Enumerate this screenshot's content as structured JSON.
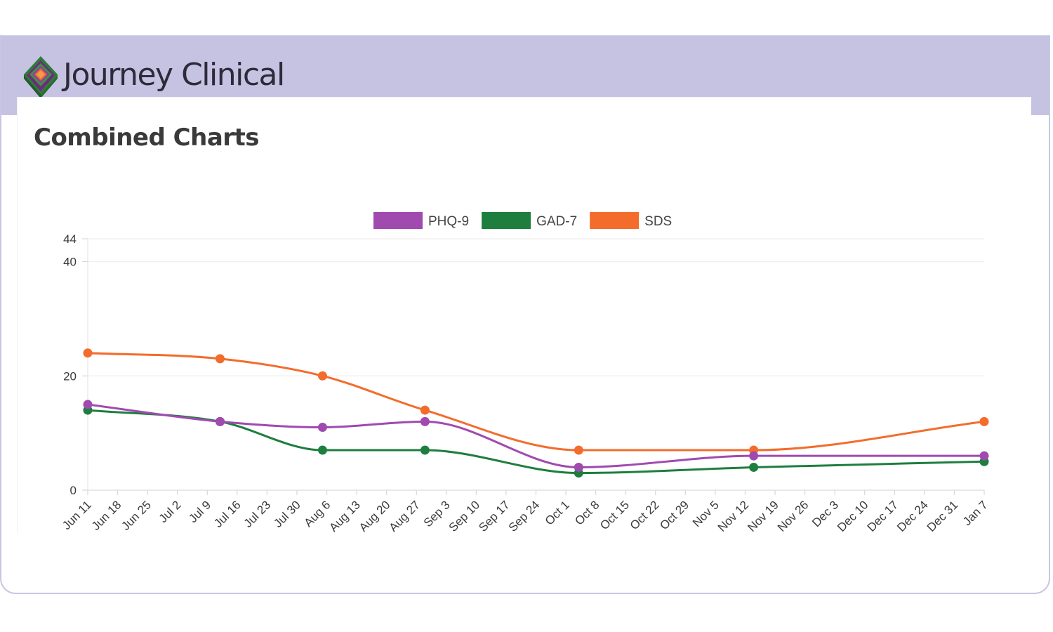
{
  "app": {
    "brand_name": "Journey Clinical",
    "logo_icon": "layered-diamond-icon",
    "header_color": "#c6c3e2"
  },
  "chart_data": {
    "type": "line",
    "title": "Combined Charts",
    "xlabel": "",
    "ylabel": "",
    "ylim": [
      0,
      44
    ],
    "y_ticks": [
      0,
      20,
      40,
      44
    ],
    "grid": true,
    "legend_position": "top",
    "x_categories": [
      "Jun 11",
      "Jun 18",
      "Jun 25",
      "Jul 2",
      "Jul 9",
      "Jul 16",
      "Jul 23",
      "Jul 30",
      "Aug 6",
      "Aug 13",
      "Aug 20",
      "Aug 27",
      "Sep 3",
      "Sep 10",
      "Sep 17",
      "Sep 24",
      "Oct 1",
      "Oct 8",
      "Oct 15",
      "Oct 22",
      "Oct 29",
      "Nov 5",
      "Nov 12",
      "Nov 19",
      "Nov 26",
      "Dec 3",
      "Dec 10",
      "Dec 17",
      "Dec 24",
      "Dec 31",
      "Jan 7"
    ],
    "series": [
      {
        "name": "PHQ-9",
        "color": "#a04ab0",
        "points": [
          {
            "x": "Jun 11",
            "y": 15
          },
          {
            "x": "Jul 12",
            "y": 12
          },
          {
            "x": "Aug 5",
            "y": 11
          },
          {
            "x": "Aug 29",
            "y": 12
          },
          {
            "x": "Oct 4",
            "y": 4
          },
          {
            "x": "Nov 14",
            "y": 6
          },
          {
            "x": "Jan 7",
            "y": 6
          }
        ]
      },
      {
        "name": "GAD-7",
        "color": "#1e7e3e",
        "points": [
          {
            "x": "Jun 11",
            "y": 14
          },
          {
            "x": "Jul 12",
            "y": 12
          },
          {
            "x": "Aug 5",
            "y": 7
          },
          {
            "x": "Aug 29",
            "y": 7
          },
          {
            "x": "Oct 4",
            "y": 3
          },
          {
            "x": "Nov 14",
            "y": 4
          },
          {
            "x": "Jan 7",
            "y": 5
          }
        ]
      },
      {
        "name": "SDS",
        "color": "#f36c2c",
        "points": [
          {
            "x": "Jun 11",
            "y": 24
          },
          {
            "x": "Jul 12",
            "y": 23
          },
          {
            "x": "Aug 5",
            "y": 20
          },
          {
            "x": "Aug 29",
            "y": 14
          },
          {
            "x": "Oct 4",
            "y": 7
          },
          {
            "x": "Nov 14",
            "y": 7
          },
          {
            "x": "Jan 7",
            "y": 12
          }
        ]
      }
    ]
  }
}
